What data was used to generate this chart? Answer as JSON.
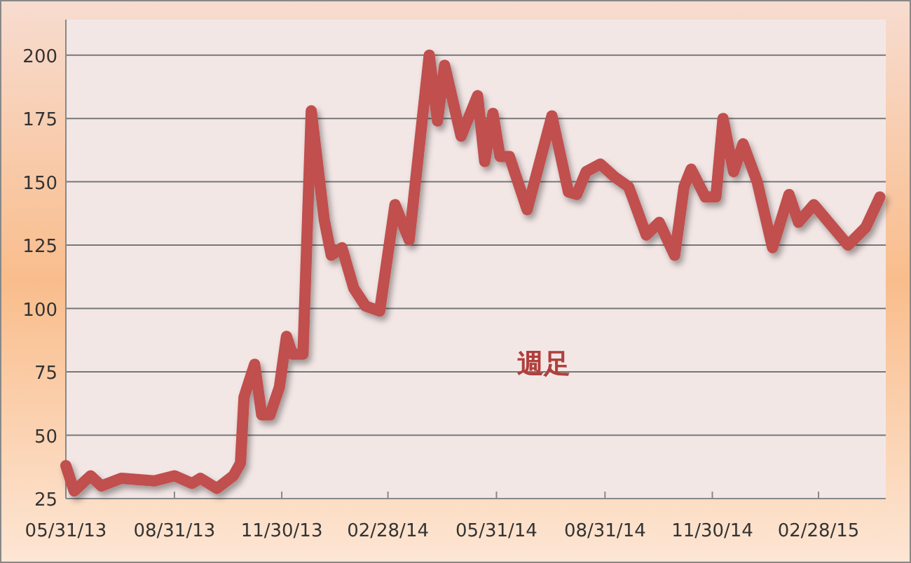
{
  "chart_data": {
    "type": "line",
    "annotations": [
      "週足"
    ],
    "x": [
      "2013-05-31",
      "2013-06-07",
      "2013-06-21",
      "2013-06-30",
      "2013-07-17",
      "2013-08-14",
      "2013-08-31",
      "2013-09-15",
      "2013-09-22",
      "2013-10-06",
      "2013-10-20",
      "2013-10-26",
      "2013-10-29",
      "2013-11-07",
      "2013-11-13",
      "2013-11-20",
      "2013-11-28",
      "2013-12-04",
      "2013-12-09",
      "2013-12-18",
      "2013-12-25",
      "2014-01-05",
      "2014-01-11",
      "2014-01-20",
      "2014-01-30",
      "2014-02-09",
      "2014-02-21",
      "2014-03-06",
      "2014-03-18",
      "2014-04-04",
      "2014-04-11",
      "2014-04-17",
      "2014-05-01",
      "2014-05-15",
      "2014-05-21",
      "2014-05-28",
      "2014-06-03",
      "2014-06-11",
      "2014-06-26",
      "2014-07-17",
      "2014-07-31",
      "2014-08-07",
      "2014-08-15",
      "2014-08-27",
      "2014-09-08",
      "2014-09-20",
      "2014-10-05",
      "2014-10-16",
      "2014-10-29",
      "2014-11-06",
      "2014-11-12",
      "2014-11-24",
      "2014-12-03",
      "2014-12-09",
      "2014-12-18",
      "2014-12-26",
      "2015-01-07",
      "2015-01-20",
      "2015-02-03",
      "2015-02-11",
      "2015-02-24",
      "2015-03-25",
      "2015-04-09",
      "2015-04-21"
    ],
    "series": [
      {
        "color": "#c0504d",
        "values": [
          38,
          28,
          34,
          30,
          33,
          32,
          34,
          31,
          33,
          29,
          34,
          39,
          65,
          78,
          58,
          58,
          69,
          89,
          82,
          82,
          178,
          135,
          121,
          124,
          108,
          101,
          99,
          141,
          127,
          200,
          174,
          196,
          168,
          184,
          158,
          177,
          160,
          160,
          139,
          176,
          146,
          145,
          154,
          157,
          152,
          148,
          129,
          134,
          121,
          148,
          155,
          144,
          144,
          175,
          154,
          165,
          150,
          124,
          145,
          134,
          141,
          125,
          132,
          144
        ]
      }
    ],
    "xlim": [
      "2013-05-31",
      "2015-04-26"
    ],
    "xticks": [
      {
        "value": "2013-05-31",
        "label": "05/31/13"
      },
      {
        "value": "2013-08-31",
        "label": "08/31/13"
      },
      {
        "value": "2013-11-30",
        "label": "11/30/13"
      },
      {
        "value": "2014-02-28",
        "label": "02/28/14"
      },
      {
        "value": "2014-05-31",
        "label": "05/31/14"
      },
      {
        "value": "2014-08-31",
        "label": "08/31/14"
      },
      {
        "value": "2014-11-30",
        "label": "11/30/14"
      },
      {
        "value": "2015-02-28",
        "label": "02/28/15"
      }
    ],
    "ylim": [
      25,
      214
    ],
    "yticks": [
      25,
      50,
      75,
      100,
      125,
      150,
      175,
      200
    ],
    "grid": "y",
    "marker": "none",
    "line_style": "solid"
  }
}
